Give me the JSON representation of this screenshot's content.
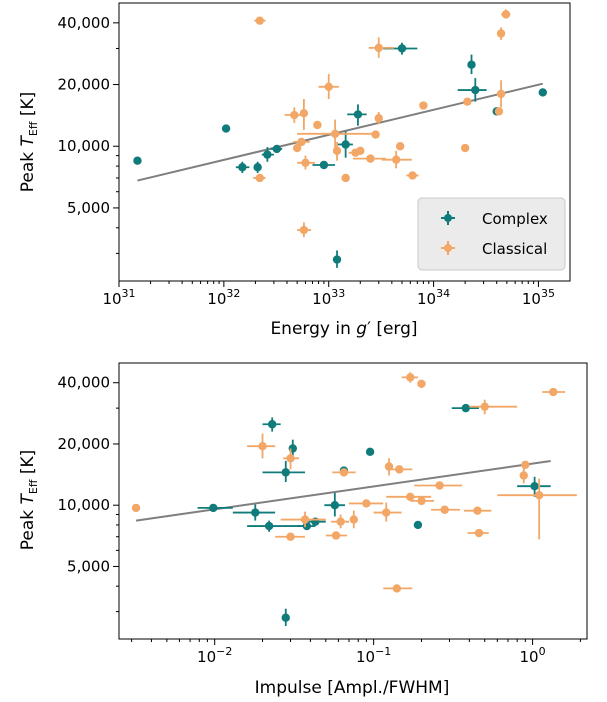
{
  "colors": {
    "complex": "#0f7b7b",
    "classical": "#f2a766",
    "fit": "#7f7f7f"
  },
  "chart_data": [
    {
      "type": "scatter",
      "xscale": "log",
      "yscale": "log",
      "xlim": [
        1e+31,
        2e+35
      ],
      "ylim": [
        2200,
        50000
      ],
      "xlabel_pre": "Energy in ",
      "xlabel_var": "g",
      "xlabel_prime": "′",
      "xlabel_post": " [erg]",
      "ylabel_pre": "Peak ",
      "ylabel_var": "T",
      "ylabel_sub": "Eff",
      "ylabel_post": "  [K]",
      "xticks": [
        1e+31,
        1e+32,
        1e+33,
        1e+34,
        1e+35
      ],
      "xtick_labels": [
        {
          "base": "10",
          "exp": "31"
        },
        {
          "base": "10",
          "exp": "32"
        },
        {
          "base": "10",
          "exp": "33"
        },
        {
          "base": "10",
          "exp": "34"
        },
        {
          "base": "10",
          "exp": "35"
        }
      ],
      "yticks": [
        5000,
        10000,
        20000,
        40000
      ],
      "ytick_labels": [
        "5,000",
        "10,000",
        "20,000",
        "40,000"
      ],
      "legend": {
        "position": "lower right",
        "entries": [
          "Complex",
          "Classical"
        ]
      },
      "fit_line": {
        "x": [
          1.5e+31,
          1.1e+35
        ],
        "y": [
          6800,
          20200
        ]
      },
      "series": [
        {
          "name": "Complex",
          "points": [
            {
              "x": 1.5e+31,
              "y": 8500
            },
            {
              "x": 1.05e+32,
              "y": 12200
            },
            {
              "x": 1.5e+32,
              "y": 7900,
              "xerr": [
                1.3e+32,
                1.75e+32
              ],
              "yerr": [
                7400,
                8400
              ]
            },
            {
              "x": 2.1e+32,
              "y": 7900,
              "yerr": [
                7400,
                8400
              ]
            },
            {
              "x": 2.6e+32,
              "y": 9100,
              "xerr": [
                2.3e+32,
                3e+32
              ],
              "yerr": [
                8400,
                9900
              ]
            },
            {
              "x": 3.2e+32,
              "y": 9700,
              "xerr": [
                2.8e+32,
                3.6e+32
              ]
            },
            {
              "x": 9e+32,
              "y": 8100,
              "xerr": [
                7e+32,
                1.15e+33
              ]
            },
            {
              "x": 1.2e+33,
              "y": 2800,
              "yerr": [
                2550,
                3100
              ]
            },
            {
              "x": 1.45e+33,
              "y": 10200,
              "xerr": [
                1.2e+33,
                1.7e+33
              ],
              "yerr": [
                8800,
                11800
              ]
            },
            {
              "x": 1.9e+33,
              "y": 14300,
              "xerr": [
                1.5e+33,
                2.3e+33
              ],
              "yerr": [
                12600,
                16000
              ]
            },
            {
              "x": 5e+33,
              "y": 30000,
              "xerr": [
                3.3e+33,
                7e+33
              ],
              "yerr": [
                28000,
                32000
              ]
            },
            {
              "x": 2.3e+34,
              "y": 25000,
              "yerr": [
                22500,
                28000
              ]
            },
            {
              "x": 2.5e+34,
              "y": 18800,
              "xerr": [
                1.7e+34,
                3.2e+34
              ],
              "yerr": [
                16500,
                21500
              ]
            },
            {
              "x": 4e+34,
              "y": 14800
            },
            {
              "x": 1.1e+35,
              "y": 18300
            }
          ]
        },
        {
          "name": "Classical",
          "points": [
            {
              "x": 2.2e+32,
              "y": 41000,
              "xerr": [
                1.95e+32,
                2.5e+32
              ]
            },
            {
              "x": 2.2e+32,
              "y": 7000,
              "xerr": [
                1.9e+32,
                2.5e+32
              ]
            },
            {
              "x": 4.7e+32,
              "y": 14200,
              "xerr": [
                3.8e+32,
                5.8e+32
              ],
              "yerr": [
                13000,
                15500
              ]
            },
            {
              "x": 5e+32,
              "y": 9800
            },
            {
              "x": 5.5e+32,
              "y": 10500,
              "xerr": [
                4.6e+32,
                6.6e+32
              ]
            },
            {
              "x": 5.8e+32,
              "y": 14500,
              "yerr": [
                12000,
                17000
              ]
            },
            {
              "x": 6e+32,
              "y": 8300,
              "xerr": [
                5e+32,
                7.4e+32
              ],
              "yerr": [
                7700,
                9000
              ]
            },
            {
              "x": 5.8e+32,
              "y": 3900,
              "xerr": [
                5e+32,
                6.8e+32
              ],
              "yerr": [
                3600,
                4250
              ]
            },
            {
              "x": 7.8e+32,
              "y": 12700
            },
            {
              "x": 1e+33,
              "y": 19500,
              "xerr": [
                8e+32,
                1.25e+33
              ],
              "yerr": [
                17000,
                22500
              ]
            },
            {
              "x": 1.15e+33,
              "y": 11500,
              "xerr": [
                5e+32,
                2.6e+33
              ],
              "yerr": [
                9800,
                13500
              ]
            },
            {
              "x": 1.2e+33,
              "y": 9500,
              "yerr": [
                8500,
                10500
              ]
            },
            {
              "x": 1.45e+33,
              "y": 7000
            },
            {
              "x": 1.8e+33,
              "y": 9300,
              "xerr": [
                1.55e+33,
                2.1e+33
              ]
            },
            {
              "x": 2e+33,
              "y": 9500
            },
            {
              "x": 2.5e+33,
              "y": 8700,
              "xerr": [
                1.7e+33,
                3.5e+33
              ]
            },
            {
              "x": 3e+33,
              "y": 30200,
              "xerr": [
                2.4e+33,
                4.2e+33
              ],
              "yerr": [
                27000,
                34000
              ]
            },
            {
              "x": 3e+33,
              "y": 13700,
              "yerr": [
                12800,
                14700
              ]
            },
            {
              "x": 2.8e+33,
              "y": 11400
            },
            {
              "x": 4.4e+33,
              "y": 8600,
              "xerr": [
                3.2e+33,
                6.2e+33
              ],
              "yerr": [
                7800,
                9500
              ]
            },
            {
              "x": 4.8e+33,
              "y": 10000
            },
            {
              "x": 6.3e+33,
              "y": 7200,
              "xerr": [
                5.5e+33,
                7.2e+33
              ]
            },
            {
              "x": 8e+33,
              "y": 15800
            },
            {
              "x": 2e+34,
              "y": 9800
            },
            {
              "x": 2.1e+34,
              "y": 16500
            },
            {
              "x": 4.2e+34,
              "y": 14800
            },
            {
              "x": 4.4e+34,
              "y": 18000,
              "yerr": [
                15500,
                21000
              ]
            },
            {
              "x": 4.4e+34,
              "y": 35500,
              "yerr": [
                33000,
                38000
              ]
            },
            {
              "x": 4.9e+34,
              "y": 44000,
              "xerr": [
                4.4e+34,
                5.4e+34
              ],
              "yerr": [
                42000,
                46500
              ]
            }
          ]
        }
      ]
    },
    {
      "type": "scatter",
      "xscale": "log",
      "yscale": "log",
      "xlim": [
        0.0025,
        2.2
      ],
      "ylim": [
        2200,
        50000
      ],
      "xlabel": "Impulse [Ampl./FWHM]",
      "ylabel_pre": "Peak ",
      "ylabel_var": "T",
      "ylabel_sub": "Eff",
      "ylabel_post": "  [K]",
      "xticks": [
        0.01,
        0.1,
        1
      ],
      "xtick_labels": [
        {
          "base": "10",
          "exp": "−2"
        },
        {
          "base": "10",
          "exp": "−1"
        },
        {
          "base": "10",
          "exp": "0"
        }
      ],
      "yticks": [
        5000,
        10000,
        20000,
        40000
      ],
      "ytick_labels": [
        "5,000",
        "10,000",
        "20,000",
        "40,000"
      ],
      "fit_line": {
        "x": [
          0.0032,
          1.3
        ],
        "y": [
          8400,
          16500
        ]
      },
      "series": [
        {
          "name": "Complex",
          "points": [
            {
              "x": 0.0098,
              "y": 9700,
              "xerr": [
                0.0078,
                0.013
              ]
            },
            {
              "x": 0.018,
              "y": 9200,
              "xerr": [
                0.013,
                0.024
              ],
              "yerr": [
                8400,
                10100
              ]
            },
            {
              "x": 0.022,
              "y": 7900,
              "xerr": [
                0.016,
                0.035
              ],
              "yerr": [
                7400,
                8400
              ]
            },
            {
              "x": 0.023,
              "y": 25000,
              "xerr": [
                0.02,
                0.026
              ],
              "yerr": [
                23000,
                27000
              ]
            },
            {
              "x": 0.028,
              "y": 14500,
              "xerr": [
                0.02,
                0.037
              ],
              "yerr": [
                13000,
                16500
              ]
            },
            {
              "x": 0.028,
              "y": 2800,
              "yerr": [
                2550,
                3100
              ]
            },
            {
              "x": 0.031,
              "y": 19000,
              "yerr": [
                17000,
                21000
              ]
            },
            {
              "x": 0.038,
              "y": 7900,
              "xerr": [
                0.033,
                0.043
              ]
            },
            {
              "x": 0.043,
              "y": 8300,
              "xerr": [
                0.037,
                0.05
              ]
            },
            {
              "x": 0.057,
              "y": 10000,
              "xerr": [
                0.049,
                0.066
              ],
              "yerr": [
                8800,
                11500
              ]
            },
            {
              "x": 0.065,
              "y": 14800
            },
            {
              "x": 0.095,
              "y": 18300
            },
            {
              "x": 0.19,
              "y": 8000
            },
            {
              "x": 0.38,
              "y": 30000,
              "xerr": [
                0.31,
                0.46
              ]
            },
            {
              "x": 1.03,
              "y": 12400,
              "xerr": [
                0.8,
                1.3
              ],
              "yerr": [
                11000,
                13800
              ]
            }
          ]
        },
        {
          "name": "Classical",
          "points": [
            {
              "x": 0.0032,
              "y": 9700
            },
            {
              "x": 0.02,
              "y": 19500,
              "xerr": [
                0.016,
                0.024
              ],
              "yerr": [
                17000,
                22500
              ]
            },
            {
              "x": 0.03,
              "y": 17000,
              "xerr": [
                0.027,
                0.034
              ],
              "yerr": [
                15000,
                19000
              ]
            },
            {
              "x": 0.03,
              "y": 7000,
              "xerr": [
                0.024,
                0.037
              ]
            },
            {
              "x": 0.037,
              "y": 8500,
              "xerr": [
                0.026,
                0.05
              ],
              "yerr": [
                7800,
                9300
              ]
            },
            {
              "x": 0.058,
              "y": 7100,
              "xerr": [
                0.05,
                0.068
              ]
            },
            {
              "x": 0.062,
              "y": 8300,
              "xerr": [
                0.054,
                0.07
              ],
              "yerr": [
                7700,
                9000
              ]
            },
            {
              "x": 0.065,
              "y": 14500,
              "xerr": [
                0.055,
                0.077
              ]
            },
            {
              "x": 0.075,
              "y": 8500,
              "yerr": [
                7700,
                9400
              ]
            },
            {
              "x": 0.09,
              "y": 10200,
              "xerr": [
                0.07,
                0.115
              ]
            },
            {
              "x": 0.12,
              "y": 9200,
              "xerr": [
                0.1,
                0.15
              ],
              "yerr": [
                8300,
                10300
              ]
            },
            {
              "x": 0.125,
              "y": 15500,
              "yerr": [
                14000,
                17000
              ]
            },
            {
              "x": 0.14,
              "y": 3900,
              "xerr": [
                0.115,
                0.175
              ]
            },
            {
              "x": 0.145,
              "y": 15000,
              "xerr": [
                0.12,
                0.175
              ]
            },
            {
              "x": 0.17,
              "y": 11000,
              "xerr": [
                0.12,
                0.23
              ]
            },
            {
              "x": 0.17,
              "y": 42500,
              "xerr": [
                0.15,
                0.19
              ],
              "yerr": [
                40000,
                45000
              ]
            },
            {
              "x": 0.2,
              "y": 10500,
              "xerr": [
                0.17,
                0.24
              ]
            },
            {
              "x": 0.2,
              "y": 39500
            },
            {
              "x": 0.26,
              "y": 12500,
              "xerr": [
                0.18,
                0.36
              ]
            },
            {
              "x": 0.28,
              "y": 9500,
              "xerr": [
                0.23,
                0.35
              ]
            },
            {
              "x": 0.45,
              "y": 9400,
              "xerr": [
                0.37,
                0.55
              ]
            },
            {
              "x": 0.46,
              "y": 7300,
              "xerr": [
                0.39,
                0.53
              ]
            },
            {
              "x": 0.5,
              "y": 30500,
              "xerr": [
                0.4,
                0.8
              ],
              "yerr": [
                28000,
                33000
              ]
            },
            {
              "x": 0.9,
              "y": 15800
            },
            {
              "x": 0.88,
              "y": 14000,
              "yerr": [
                12800,
                15500
              ]
            },
            {
              "x": 1.1,
              "y": 11200,
              "xerr": [
                0.6,
                1.9
              ],
              "yerr": [
                6800,
                13500
              ]
            },
            {
              "x": 1.35,
              "y": 36000,
              "xerr": [
                1.15,
                1.6
              ]
            }
          ]
        }
      ]
    }
  ]
}
